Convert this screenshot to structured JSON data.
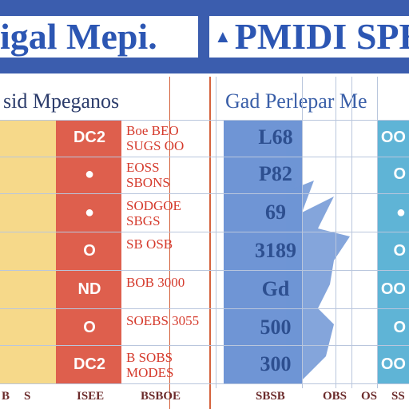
{
  "banner": {
    "title_left": "igal Mepi.",
    "title_right_glyph": "▲",
    "title_right": "PMIDI SPE"
  },
  "headers": {
    "left": "sid Mpeganos",
    "right": "Gad Perlepar Me"
  },
  "rows": [
    {
      "cream": "",
      "red": "DC2",
      "note": "Boe BEO SUGS OO",
      "blue": "L68",
      "teal": "OO"
    },
    {
      "cream": "",
      "red": "●",
      "note": "EOSS SBONS",
      "blue": "P82",
      "teal": "O"
    },
    {
      "cream": "",
      "red": "●",
      "note": "SODGOE SBGS",
      "blue": "69",
      "teal": "●"
    },
    {
      "cream": "",
      "red": "O",
      "note": "SB OSB",
      "blue": "3189",
      "teal": "O"
    },
    {
      "cream": "",
      "red": "ND",
      "note": "BOB 3000",
      "blue": "Gd",
      "teal": "OO"
    },
    {
      "cream": "",
      "red": "O",
      "note": "SOEBS 3055",
      "blue": "500",
      "teal": "O"
    },
    {
      "cream": "",
      "red": "DC2",
      "note": "B SOBS MODES",
      "blue": "300",
      "teal": "OO"
    }
  ],
  "footer": {
    "items": [
      "B",
      "S",
      "ISEE",
      "BSBOE",
      "SBSB",
      "OBS",
      "OS",
      "SS"
    ]
  },
  "colors": {
    "banner": "#3b5dae",
    "title_text": "#2c56b3",
    "cream": "#f6d98a",
    "red": "#de5f4d",
    "blue": "#6f95d5",
    "teal": "#5fb4d6"
  }
}
